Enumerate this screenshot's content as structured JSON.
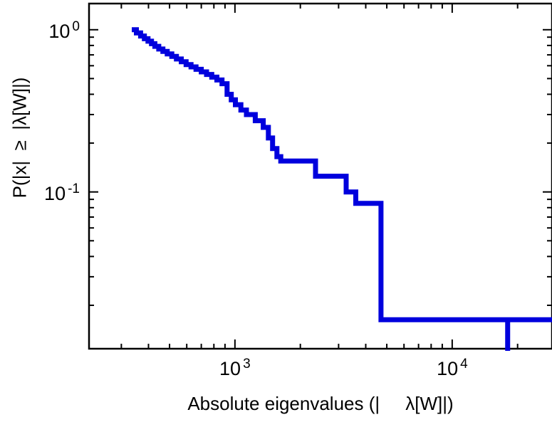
{
  "figure": {
    "background": "#ffffff",
    "frame_color": "#000000"
  },
  "chart_data": {
    "type": "line",
    "subtype": "log-log-step-ccdf",
    "title": "",
    "xlabel": "Absolute eigenvalues (|     λ[W]|)",
    "ylabel": "P(|x|  ≥  |λ[W]|)",
    "xscale": "log",
    "yscale": "log",
    "xlim": [
      213,
      28800
    ],
    "ylim": [
      0.0108,
      1.45
    ],
    "grid": false,
    "legend": "none",
    "line_color": "#0000dd",
    "line_width": 7,
    "x_ticks": [
      {
        "value": 1000,
        "base": "10",
        "exp": "3"
      },
      {
        "value": 10000,
        "base": "10",
        "exp": "4"
      }
    ],
    "y_ticks": [
      {
        "value": 1,
        "base": "10",
        "exp": "0"
      },
      {
        "value": 0.1,
        "base": "10",
        "exp": "-1"
      }
    ],
    "steps": [
      [
        335,
        1.0
      ],
      [
        352,
        0.955
      ],
      [
        368,
        0.915
      ],
      [
        383,
        0.88
      ],
      [
        398,
        0.85
      ],
      [
        413,
        0.82
      ],
      [
        428,
        0.79
      ],
      [
        446,
        0.76
      ],
      [
        466,
        0.735
      ],
      [
        488,
        0.71
      ],
      [
        512,
        0.685
      ],
      [
        538,
        0.66
      ],
      [
        566,
        0.635
      ],
      [
        596,
        0.61
      ],
      [
        628,
        0.59
      ],
      [
        662,
        0.57
      ],
      [
        700,
        0.55
      ],
      [
        740,
        0.53
      ],
      [
        782,
        0.51
      ],
      [
        826,
        0.49
      ],
      [
        872,
        0.465
      ],
      [
        920,
        0.4
      ],
      [
        962,
        0.37
      ],
      [
        1005,
        0.345
      ],
      [
        1065,
        0.32
      ],
      [
        1130,
        0.3
      ],
      [
        1240,
        0.275
      ],
      [
        1350,
        0.25
      ],
      [
        1425,
        0.215
      ],
      [
        1490,
        0.185
      ],
      [
        1560,
        0.165
      ],
      [
        1625,
        0.155
      ],
      [
        2350,
        0.125
      ],
      [
        3250,
        0.1
      ],
      [
        3600,
        0.085
      ],
      [
        4700,
        0.0163
      ],
      [
        28800,
        0.0163
      ]
    ],
    "drop_segments": [
      {
        "x": 18000,
        "y_from": 0.0163,
        "y_to": 0.0108
      }
    ]
  }
}
